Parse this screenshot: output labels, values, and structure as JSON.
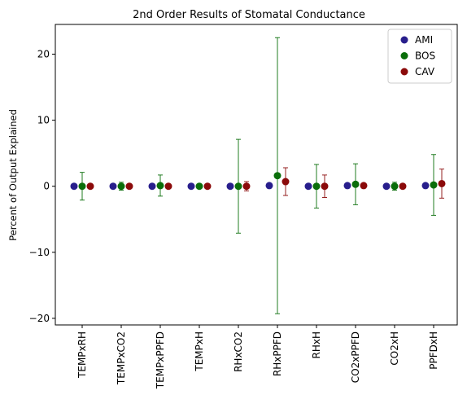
{
  "chart_data": {
    "type": "scatter",
    "title": "2nd Order Results of Stomatal Conductance",
    "xlabel": "",
    "ylabel": "Percent of Output Explained",
    "categories": [
      "TEMPxRH",
      "TEMPxCO2",
      "TEMPxPPFD",
      "TEMPxH",
      "RHxCO2",
      "RHxPPFD",
      "RHxH",
      "CO2xPPFD",
      "CO2xH",
      "PPFDxH"
    ],
    "ylim": [
      -21,
      24.5
    ],
    "yticks": [
      -20,
      -10,
      0,
      10,
      20
    ],
    "ytick_labels": [
      "−20",
      "−10",
      "0",
      "10",
      "20"
    ],
    "grid": false,
    "legend_position": "top-right",
    "series": [
      {
        "name": "AMI",
        "color": "#281e8c",
        "values": [
          0.0,
          0.0,
          0.0,
          0.0,
          0.0,
          0.1,
          0.0,
          0.1,
          0.0,
          0.1
        ],
        "errors": [
          0.0,
          0.0,
          0.0,
          0.0,
          0.0,
          0.0,
          0.0,
          0.0,
          0.0,
          0.0
        ]
      },
      {
        "name": "BOS",
        "color": "#0a6e0a",
        "values": [
          0.0,
          0.0,
          0.1,
          0.0,
          0.0,
          1.6,
          0.0,
          0.3,
          0.0,
          0.2
        ],
        "errors": [
          2.1,
          0.6,
          1.6,
          0.0,
          7.1,
          20.9,
          3.3,
          3.1,
          0.6,
          4.6
        ]
      },
      {
        "name": "CAV",
        "color": "#8b0a0a",
        "values": [
          0.0,
          0.0,
          0.0,
          0.0,
          0.0,
          0.7,
          0.0,
          0.1,
          0.0,
          0.4
        ],
        "errors": [
          0.0,
          0.0,
          0.0,
          0.0,
          0.7,
          2.1,
          1.7,
          0.0,
          0.0,
          2.2
        ]
      }
    ]
  }
}
